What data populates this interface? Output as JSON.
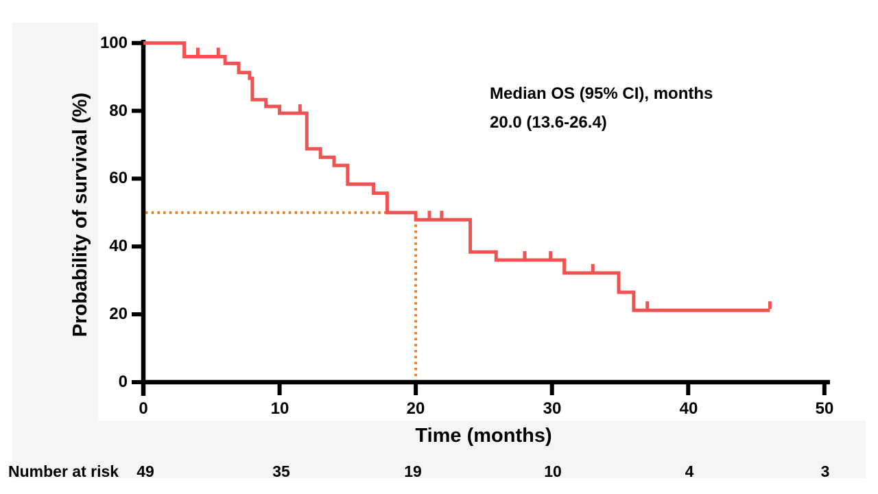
{
  "colors": {
    "axis": "#000000",
    "text": "#000000",
    "panel_background": "#f5f5f6",
    "plot_background": "#ffffff",
    "curve_red": "#f15352",
    "median_orange": "#e87f25"
  },
  "chart_data": {
    "type": "line",
    "subtype": "kaplan-meier-step",
    "title": "",
    "xlabel": "Time (months)",
    "ylabel": "Probability of survival  (%)",
    "xlim": [
      0,
      50
    ],
    "ylim": [
      0,
      100
    ],
    "grid": false,
    "legend": "none",
    "xticks": [
      {
        "v": 0,
        "label": "0"
      },
      {
        "v": 10,
        "label": "10"
      },
      {
        "v": 20,
        "label": "20"
      },
      {
        "v": 30,
        "label": "30"
      },
      {
        "v": 40,
        "label": "40"
      },
      {
        "v": 50,
        "label": "50"
      }
    ],
    "yticks": [
      {
        "v": 100,
        "label": "100"
      },
      {
        "v": 80,
        "label": "80"
      },
      {
        "v": 60,
        "label": "60"
      },
      {
        "v": 40,
        "label": "40"
      },
      {
        "v": 20,
        "label": "20"
      },
      {
        "v": 0,
        "label": "0"
      }
    ],
    "annotation": {
      "line1": "Median OS (95% CI), months",
      "line2": "20.0 (13.6-26.4)"
    },
    "median_lines": {
      "time": 20,
      "survival_pct": 50,
      "style": "dotted",
      "color": "#e87f25"
    },
    "series": [
      {
        "name": "Overall survival",
        "color": "#f15352",
        "end_time": 46,
        "steps": [
          [
            0,
            100
          ],
          [
            3,
            96
          ],
          [
            6,
            94
          ],
          [
            7,
            91.3
          ],
          [
            7.8,
            89.6
          ],
          [
            8,
            83.3
          ],
          [
            9,
            81.3
          ],
          [
            10,
            79.3
          ],
          [
            12,
            68.8
          ],
          [
            13,
            66.3
          ],
          [
            14,
            63.9
          ],
          [
            15,
            58.4
          ],
          [
            16.9,
            55.7
          ],
          [
            17.9,
            50
          ],
          [
            20,
            47.9
          ],
          [
            24,
            38.4
          ],
          [
            25.9,
            36
          ],
          [
            30.9,
            32.2
          ],
          [
            34.9,
            26.5
          ],
          [
            36,
            21.2
          ]
        ],
        "censor_marks": [
          [
            4,
            96
          ],
          [
            5.5,
            96
          ],
          [
            11.5,
            79.3
          ],
          [
            21,
            47.9
          ],
          [
            21.9,
            47.9
          ],
          [
            28,
            36
          ],
          [
            29.9,
            36
          ],
          [
            33,
            32.2
          ],
          [
            37,
            21.2
          ],
          [
            46,
            21.2
          ]
        ]
      }
    ],
    "number_at_risk": {
      "label": "Number at risk",
      "times": [
        0,
        10,
        20,
        30,
        40,
        50
      ],
      "values": [
        "49",
        "35",
        "19",
        "10",
        "4",
        "3"
      ]
    }
  }
}
